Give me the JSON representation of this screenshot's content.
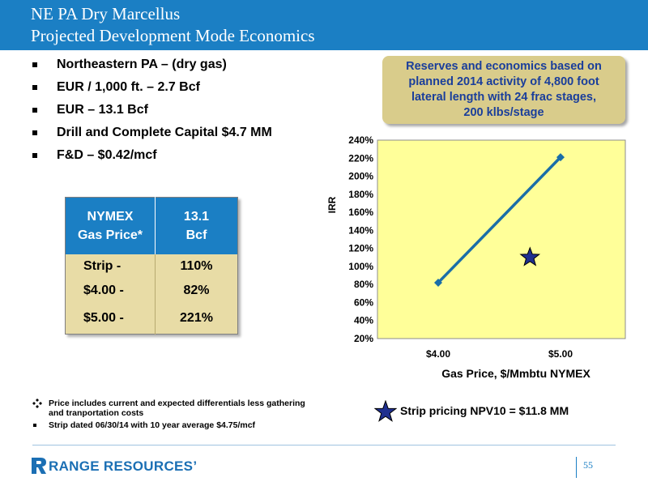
{
  "header": {
    "title_line1": "NE PA Dry Marcellus",
    "title_line2": "Projected Development Mode Economics",
    "background": "#1b7fc4"
  },
  "bullets": [
    "Northeastern PA – (dry gas)",
    "EUR / 1,000 ft. – 2.7 Bcf",
    "EUR – 13.1 Bcf",
    "Drill and Complete Capital $4.7 MM",
    "F&D – $0.42/mcf"
  ],
  "callout": {
    "line1": "Reserves and economics based on",
    "line2": "planned 2014 activity of 4,800 foot",
    "line3": "lateral length with 24 frac stages,",
    "line4": "200 klbs/stage",
    "background": "#d9cc8b",
    "text_color": "#1a3e9b"
  },
  "table": {
    "header_col1_line1": "NYMEX",
    "header_col1_line2": "Gas Price*",
    "header_col2_line1": "13.1",
    "header_col2_line2": "Bcf",
    "rows": [
      {
        "label": "Strip -",
        "value": "110%"
      },
      {
        "label": "$4.00   -",
        "value": "82%"
      },
      {
        "label": "$5.00   -",
        "value": "221%"
      }
    ]
  },
  "chart_data": {
    "type": "line",
    "x_categories": [
      "$4.00",
      "$5.00"
    ],
    "xlabel": "Gas Price, $/Mmbtu NYMEX",
    "ylabel": "IRR",
    "y_ticks": [
      "20%",
      "40%",
      "60%",
      "80%",
      "100%",
      "120%",
      "140%",
      "160%",
      "180%",
      "200%",
      "220%",
      "240%"
    ],
    "ylim": [
      20,
      240
    ],
    "series": [
      {
        "values": [
          82,
          221
        ],
        "color": "#1a6ea8",
        "marker": "diamond"
      }
    ],
    "strip_point": {
      "x": 4.75,
      "y": 110,
      "marker": "star",
      "color": "#1f2f8f"
    },
    "plot_background": "#ffff99",
    "grid": false
  },
  "notes": [
    {
      "marker": "diamond-cluster",
      "text_line1": "Price includes current and expected differentials less gathering",
      "text_line2": "and tranportation costs"
    },
    {
      "marker": "square",
      "text_line1": "Strip dated 06/30/14 with 10 year average $4.75/mcf",
      "text_line2": ""
    }
  ],
  "strip_note": "Strip pricing NPV10 = $11.8 MM",
  "footer": {
    "logo_text": "RANGE RESOURCES",
    "logo_mark": "’",
    "page_number": "55"
  }
}
